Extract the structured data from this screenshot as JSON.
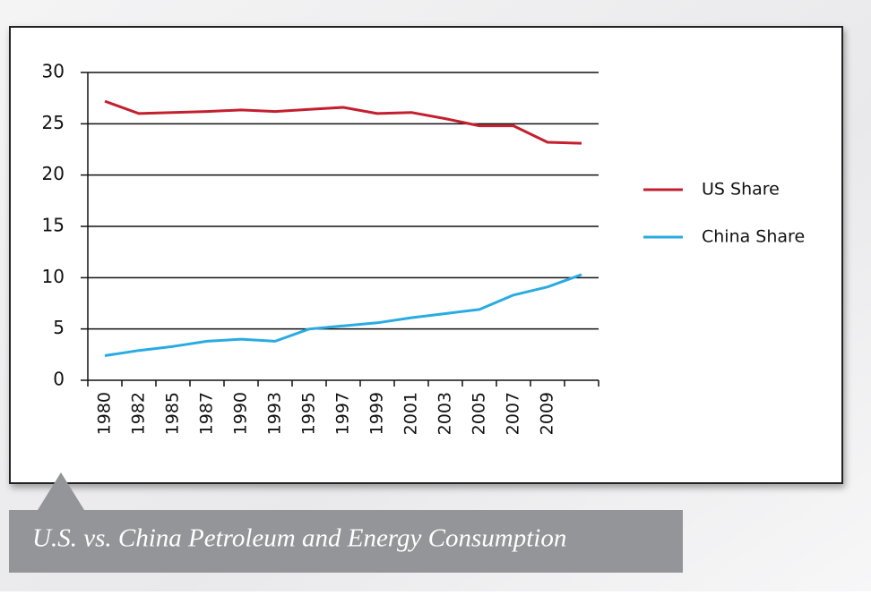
{
  "chart_data": {
    "type": "line",
    "title": "U.S. vs. China Petroleum and Energy Consumption",
    "categories": [
      "1980",
      "1982",
      "1985",
      "1987",
      "1990",
      "1993",
      "1995",
      "1997",
      "1999",
      "2001",
      "2003",
      "2005",
      "2007",
      "2009",
      null
    ],
    "series": [
      {
        "name": "US Share",
        "color": "#c3202f",
        "values": [
          27.2,
          26.0,
          26.1,
          26.2,
          26.35,
          26.2,
          26.4,
          26.6,
          26.0,
          26.1,
          25.5,
          24.8,
          24.8,
          23.2,
          23.1
        ]
      },
      {
        "name": "China Share",
        "color": "#29abe2",
        "values": [
          2.4,
          2.9,
          3.3,
          3.8,
          4.0,
          3.8,
          5.0,
          5.3,
          5.6,
          6.1,
          6.5,
          6.9,
          8.3,
          9.1,
          10.3
        ]
      }
    ],
    "ylim": [
      0,
      30
    ],
    "yticks": [
      0,
      5,
      10,
      15,
      20,
      25,
      30
    ],
    "grid": true,
    "legend": "right"
  }
}
